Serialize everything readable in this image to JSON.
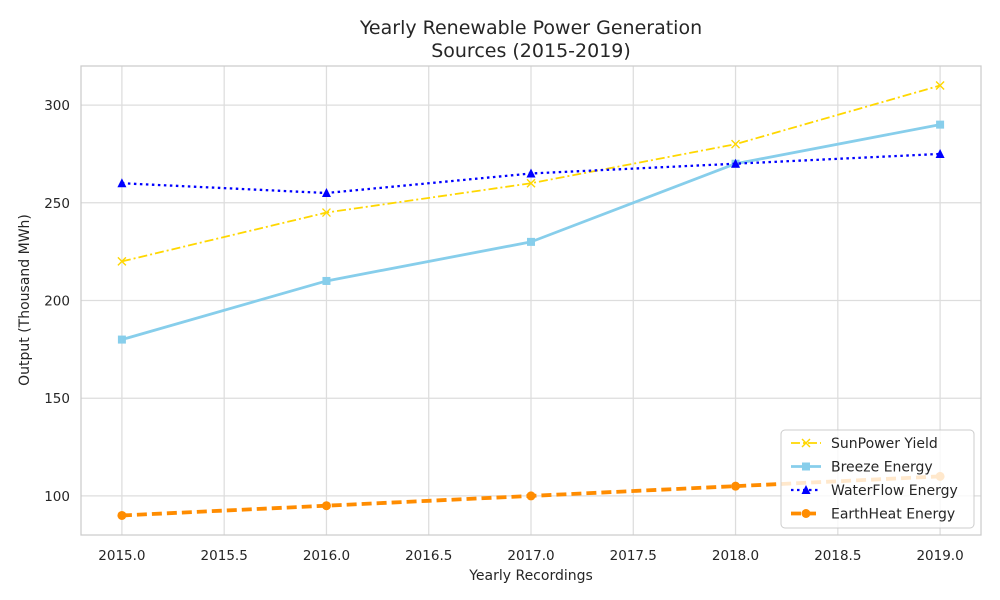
{
  "chart_data": {
    "type": "line",
    "title": [
      "Yearly Renewable Power Generation",
      "Sources (2015-2019)"
    ],
    "xlabel": "Yearly Recordings",
    "ylabel": "Output (Thousand MWh)",
    "x": [
      2015,
      2016,
      2017,
      2018,
      2019
    ],
    "xlim": [
      2014.8,
      2019.2
    ],
    "ylim": [
      80,
      320
    ],
    "xticks": [
      "2015.0",
      "2015.5",
      "2016.0",
      "2016.5",
      "2017.0",
      "2017.5",
      "2018.0",
      "2018.5",
      "2019.0"
    ],
    "yticks": [
      "100",
      "150",
      "200",
      "250",
      "300"
    ],
    "grid": true,
    "legend_position": "bottom-right",
    "series": [
      {
        "name": "SunPower Yield",
        "values": [
          220,
          245,
          260,
          280,
          310
        ],
        "color": "#FFD700",
        "marker": "x",
        "line_style": "dash-dot"
      },
      {
        "name": "Breeze Energy",
        "values": [
          180,
          210,
          230,
          270,
          290
        ],
        "color": "#87CEEB",
        "marker": "square",
        "line_style": "solid"
      },
      {
        "name": "WaterFlow Energy",
        "values": [
          260,
          255,
          265,
          270,
          275
        ],
        "color": "#0000FF",
        "marker": "triangle",
        "line_style": "dotted"
      },
      {
        "name": "EarthHeat Energy",
        "values": [
          90,
          95,
          100,
          105,
          110
        ],
        "color": "#FF8C00",
        "marker": "circle",
        "line_style": "dashed"
      }
    ]
  }
}
